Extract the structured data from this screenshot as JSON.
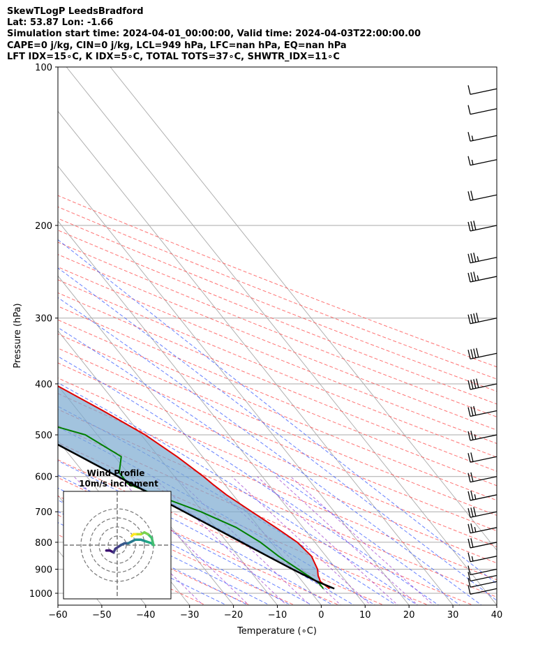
{
  "header": {
    "line1": "SkewTLogP LeedsBradford",
    "line2": "Lat: 53.87   Lon: -1.66",
    "line3": "Simulation start time: 2024-04-01_00:00:00, Valid time: 2024-04-03T22:00:00.00",
    "line4": "CAPE=0 j/kg, CIN=0 j/kg, LCL=949 hPa, LFC=nan hPa, EQ=nan hPa",
    "line5": "LFT IDX=15∘C, K IDX=5∘C, TOTAL TOTS=37∘C, SHWTR_IDX=11∘C"
  },
  "colors": {
    "temperature": "#e00000",
    "dewpoint": "#007f00",
    "parcel": "#000000",
    "cin_fill": "#7aaad0",
    "isotherm": "#aaaaaa",
    "dry_adiabat": "#ff5050",
    "moist_adiabat": "#4060ff",
    "mixing_ratio": "#9933cc"
  },
  "chart_data": {
    "type": "skewt",
    "xlabel": "Temperature (∘C)",
    "ylabel": "Pressure (hPa)",
    "xlim": [
      -60,
      40
    ],
    "ylim": [
      1050,
      100
    ],
    "x_ticks": [
      "−60",
      "−50",
      "−40",
      "−30",
      "−20",
      "−10",
      "0",
      "10",
      "20",
      "30",
      "40"
    ],
    "x_tick_values": [
      -60,
      -50,
      -40,
      -30,
      -20,
      -10,
      0,
      10,
      20,
      30,
      40
    ],
    "y_ticks": [
      "100",
      "200",
      "300",
      "400",
      "500",
      "600",
      "700",
      "800",
      "900",
      "1000"
    ],
    "y_tick_values": [
      100,
      200,
      300,
      400,
      500,
      600,
      700,
      800,
      900,
      1000
    ],
    "grid": true,
    "series": [
      {
        "key": "temperature",
        "points": [
          [
            980,
            4.9
          ],
          [
            950,
            4.1
          ],
          [
            925,
            4.7
          ],
          [
            900,
            5.7
          ],
          [
            850,
            6.7
          ],
          [
            800,
            6.0
          ],
          [
            750,
            3.8
          ],
          [
            700,
            1.2
          ],
          [
            650,
            -1.5
          ],
          [
            620,
            -2.7
          ],
          [
            600,
            -3.4
          ],
          [
            550,
            -5.8
          ],
          [
            500,
            -9.1
          ],
          [
            450,
            -14.3
          ],
          [
            400,
            -20.6
          ],
          [
            350,
            -27.8
          ],
          [
            300,
            -35.8
          ],
          [
            270,
            -41.0
          ],
          [
            260,
            -40.2
          ],
          [
            240,
            -38.6
          ],
          [
            220,
            -38.6
          ],
          [
            200,
            -39.5
          ],
          [
            180,
            -40.5
          ],
          [
            165,
            -41.0
          ],
          [
            150,
            -43.6
          ],
          [
            140,
            -46.4
          ],
          [
            125,
            -50.3
          ],
          [
            115,
            -52.3
          ],
          [
            100,
            -55.3
          ]
        ]
      },
      {
        "key": "dewpoint",
        "points": [
          [
            980,
            3.5
          ],
          [
            960,
            3.5
          ],
          [
            950,
            3.3
          ],
          [
            900,
            1.3
          ],
          [
            850,
            -0.8
          ],
          [
            800,
            -2.4
          ],
          [
            750,
            -5.2
          ],
          [
            700,
            -10.4
          ],
          [
            660,
            -16.2
          ],
          [
            620,
            -21.9
          ],
          [
            590,
            -21.9
          ],
          [
            550,
            -18.5
          ],
          [
            500,
            -22.7
          ],
          [
            470,
            -31.5
          ],
          [
            440,
            -40.4
          ],
          [
            420,
            -41.3
          ],
          [
            400,
            -40.1
          ],
          [
            370,
            -40.1
          ],
          [
            350,
            -40.7
          ],
          [
            320,
            -43.5
          ],
          [
            300,
            -46.1
          ],
          [
            270,
            -50.2
          ],
          [
            250,
            -51.6
          ],
          [
            230,
            -55.3
          ],
          [
            215,
            -59.2
          ],
          [
            200,
            -60.3
          ],
          [
            190,
            -61.3
          ],
          [
            150,
            -66.5
          ],
          [
            130,
            -68.9
          ],
          [
            100,
            -71.2
          ]
        ]
      },
      {
        "key": "parcel",
        "points": [
          [
            980,
            6.0
          ],
          [
            950,
            3.4
          ],
          [
            900,
            0.0
          ],
          [
            850,
            -3.3
          ],
          [
            800,
            -6.7
          ],
          [
            750,
            -10.3
          ],
          [
            700,
            -14.2
          ],
          [
            650,
            -18.4
          ],
          [
            600,
            -22.9
          ],
          [
            550,
            -27.8
          ],
          [
            500,
            -33.2
          ],
          [
            450,
            -39.3
          ],
          [
            400,
            -46.1
          ],
          [
            350,
            -53.8
          ],
          [
            300,
            -62.5
          ],
          [
            250,
            -72.5
          ],
          [
            200,
            -84.5
          ],
          [
            150,
            -99.0
          ],
          [
            100,
            -118.0
          ]
        ]
      }
    ],
    "wind_barbs": {
      "pressures": [
        980,
        950,
        925,
        900,
        850,
        800,
        750,
        700,
        650,
        600,
        550,
        500,
        450,
        400,
        350,
        300,
        250,
        230,
        200,
        175,
        150,
        135,
        120,
        110
      ],
      "speeds_kt": [
        10,
        10,
        10,
        10,
        15,
        20,
        25,
        30,
        25,
        20,
        20,
        25,
        30,
        40,
        40,
        40,
        35,
        35,
        30,
        20,
        15,
        15,
        10,
        10
      ]
    },
    "inset": {
      "title": "Wind Profile",
      "subtitle": "10m/s increment",
      "hodograph": [
        [
          -6,
          -3
        ],
        [
          -4,
          -3
        ],
        [
          -2,
          -4
        ],
        [
          -1,
          -2
        ],
        [
          2,
          0
        ],
        [
          4,
          1
        ],
        [
          6,
          1
        ],
        [
          8,
          2
        ],
        [
          10,
          3
        ],
        [
          13,
          3
        ],
        [
          16,
          2
        ],
        [
          19,
          1
        ],
        [
          20,
          0
        ],
        [
          19,
          4
        ],
        [
          17,
          6
        ],
        [
          15,
          7
        ],
        [
          13,
          6
        ],
        [
          11,
          6
        ],
        [
          10,
          6
        ],
        [
          9,
          6
        ],
        [
          8,
          5
        ]
      ]
    }
  }
}
